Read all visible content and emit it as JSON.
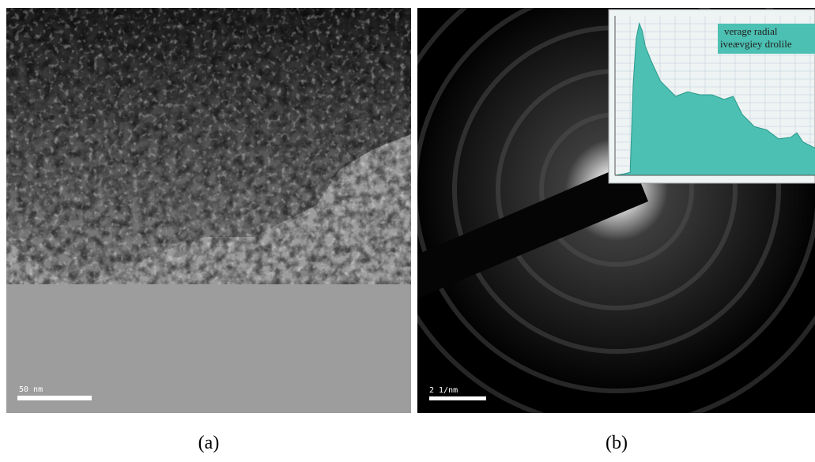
{
  "panels": [
    {
      "label": "(a)",
      "scale_bar": "50 nm"
    },
    {
      "label": "(b)",
      "scale_bar": "2 1/nm"
    }
  ],
  "chart_data": {
    "type": "area",
    "title_lines": [
      "verage radial",
      "iveævgiey drolile"
    ],
    "color": "#4cc0b2",
    "x": [
      0,
      0.3,
      0.5,
      0.6,
      0.7,
      0.8,
      0.9,
      1.0,
      1.2,
      1.5,
      2.0,
      2.4,
      2.8,
      3.2,
      3.6,
      3.9,
      4.2,
      4.6,
      5.0,
      5.4,
      5.8,
      6.0,
      6.2,
      6.6
    ],
    "values": [
      0,
      1,
      2,
      60,
      90,
      100,
      95,
      85,
      75,
      62,
      52,
      55,
      53,
      53,
      50,
      52,
      40,
      32,
      30,
      24,
      25,
      28,
      22,
      18
    ],
    "xlim": [
      0,
      6.6
    ],
    "ylim": [
      0,
      105
    ]
  }
}
